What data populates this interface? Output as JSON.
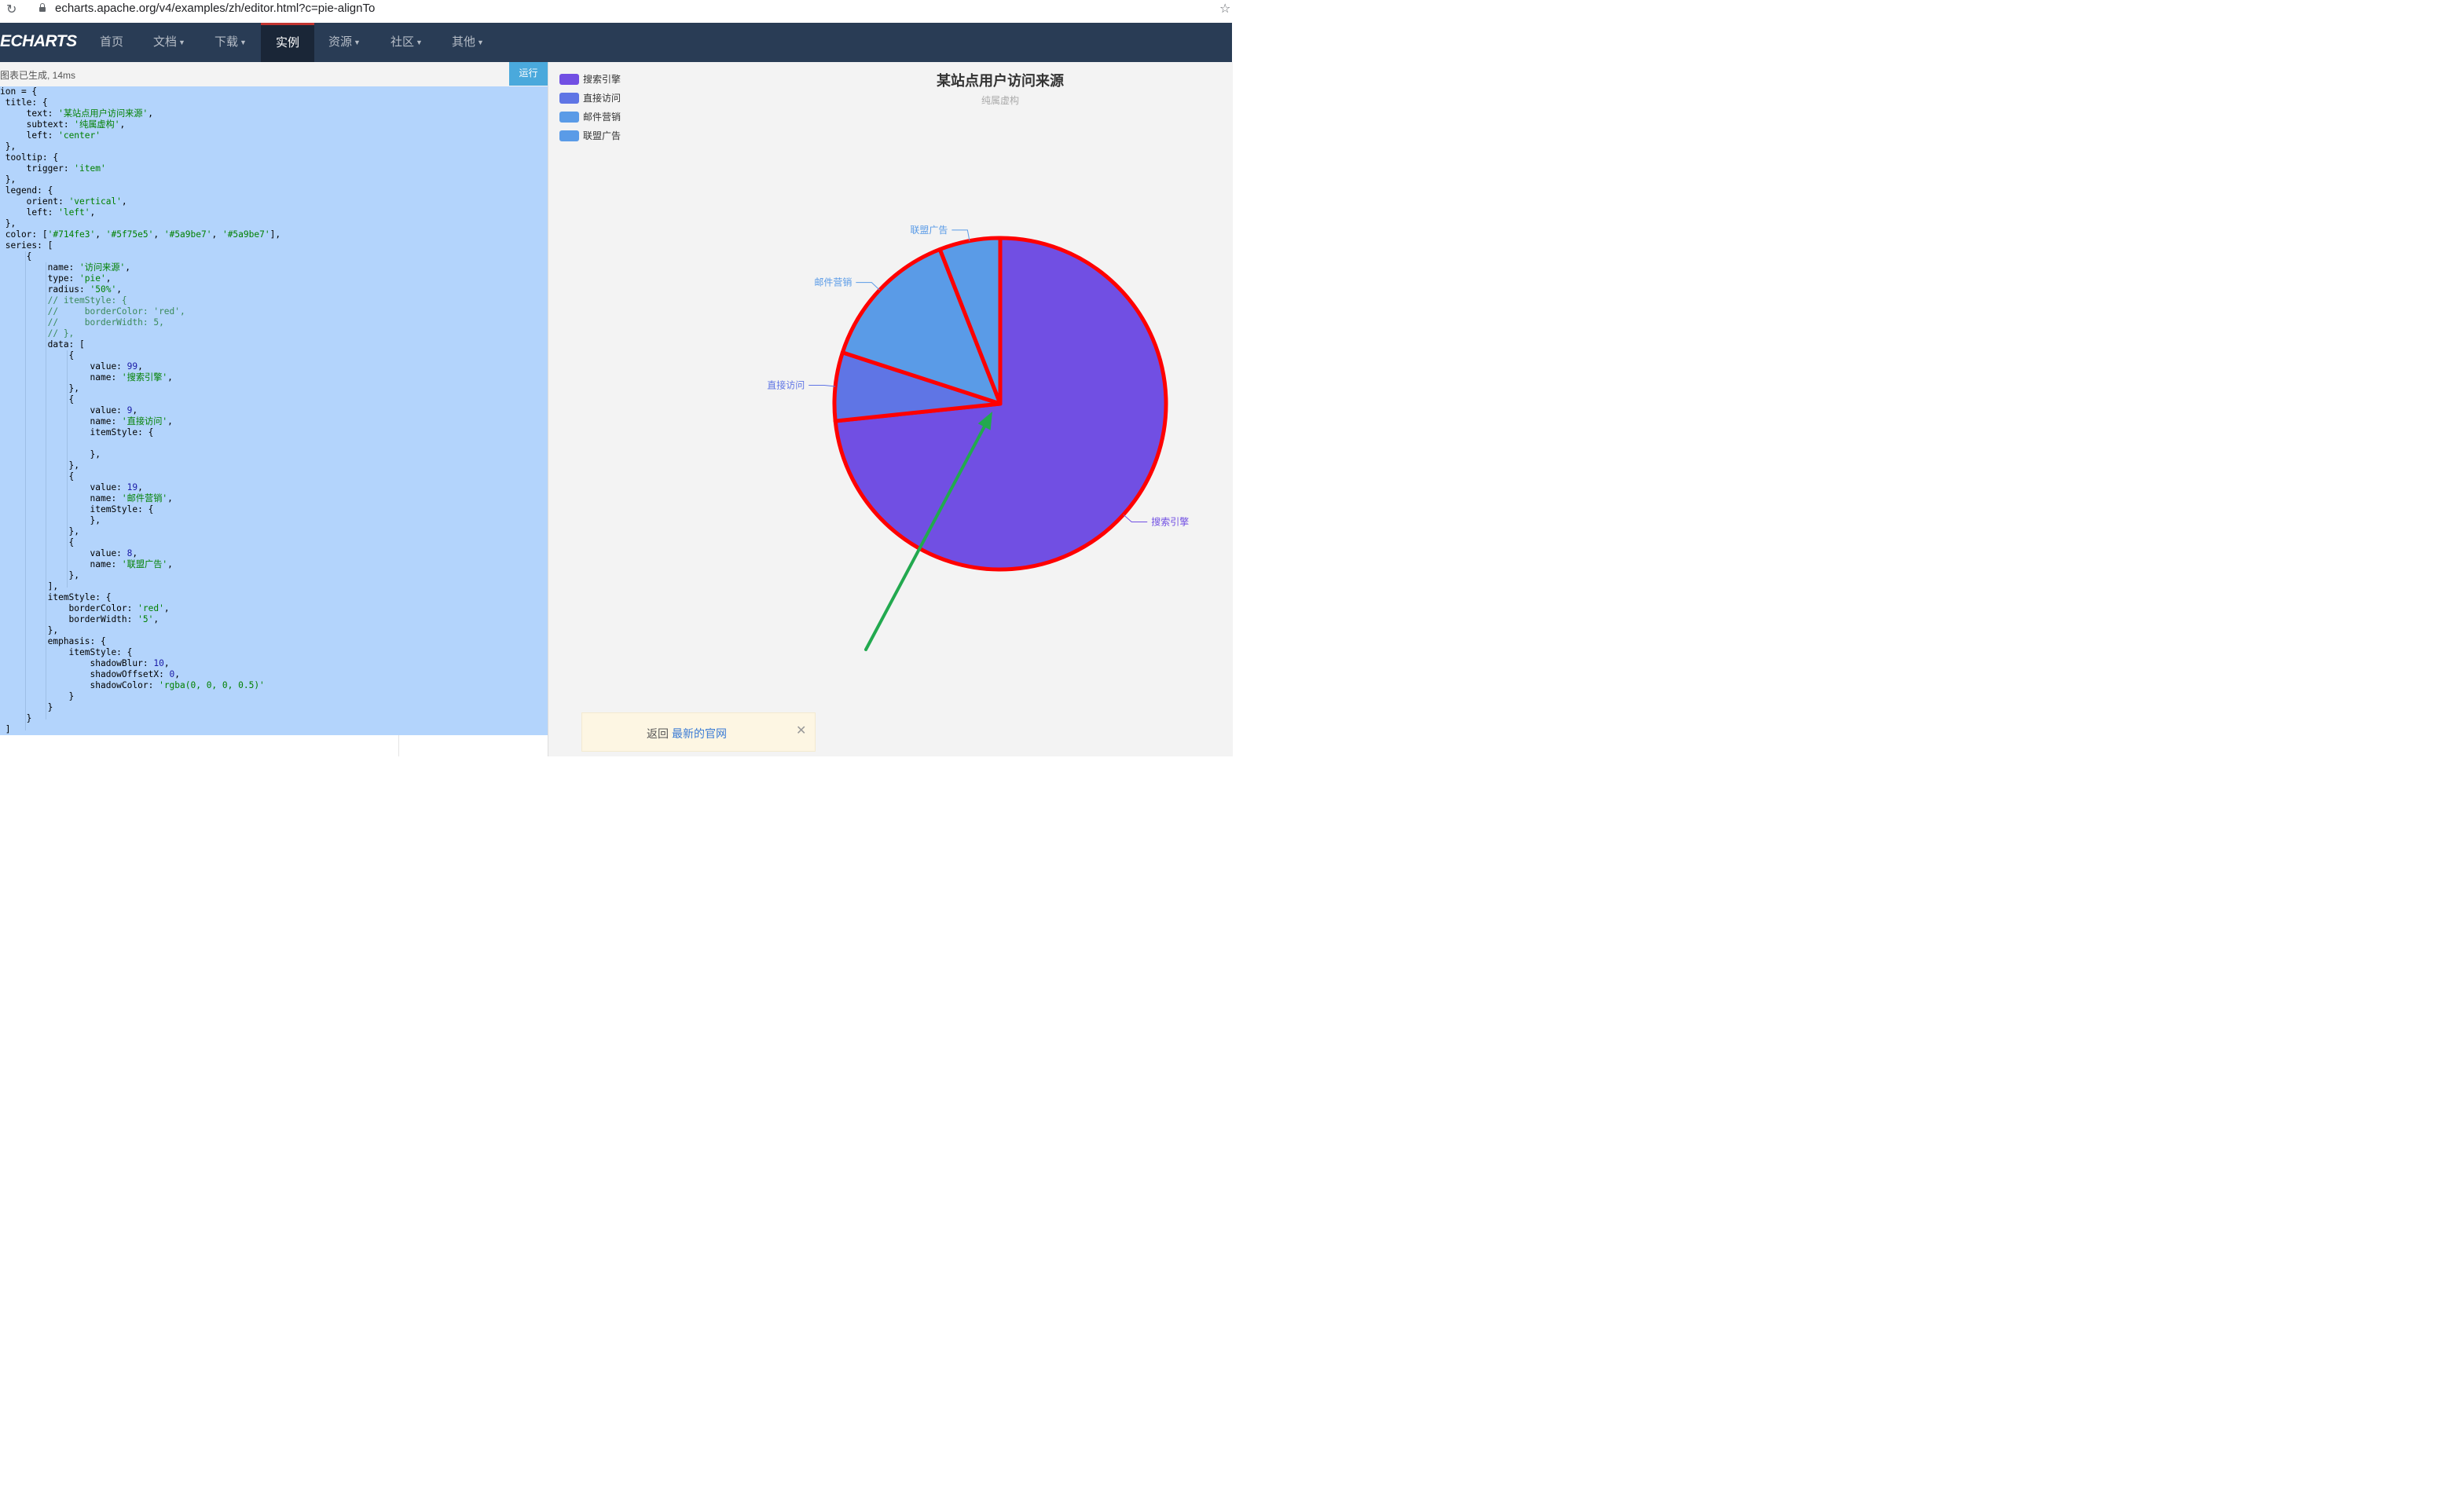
{
  "browser": {
    "reload_icon": "reload-icon",
    "url": "echarts.apache.org/v4/examples/zh/editor.html?c=pie-alignTo"
  },
  "nav": {
    "logo": "ECHARTS",
    "items": [
      "首页",
      "文档",
      "下载",
      "实例",
      "资源",
      "社区",
      "其他"
    ],
    "dropdown_items": [
      "文档",
      "下载",
      "资源",
      "社区",
      "其他"
    ],
    "active": "实例"
  },
  "editor": {
    "status": "图表已生成, 14ms",
    "run_label": "运行",
    "code_lines": [
      "ion = {",
      " title: {",
      "     text: '某站点用户访问来源',",
      "     subtext: '纯属虚构',",
      "     left: 'center'",
      " },",
      " tooltip: {",
      "     trigger: 'item'",
      " },",
      " legend: {",
      "     orient: 'vertical',",
      "     left: 'left',",
      " },",
      " color: ['#714fe3', '#5f75e5', '#5a9be7', '#5a9be7'],",
      " series: [",
      "     {",
      "         name: '访问来源',",
      "         type: 'pie',",
      "         radius: '50%',",
      "         // itemStyle: {",
      "         //     borderColor: 'red',",
      "         //     borderWidth: 5,",
      "         // },",
      "         data: [",
      "             {",
      "                 value: 99,",
      "                 name: '搜索引擎',",
      "             },",
      "             {",
      "                 value: 9,",
      "                 name: '直接访问',",
      "                 itemStyle: {",
      "",
      "                 },",
      "             },",
      "             {",
      "                 value: 19,",
      "                 name: '邮件营销',",
      "                 itemStyle: {",
      "                 },",
      "             },",
      "             {",
      "                 value: 8,",
      "                 name: '联盟广告',",
      "             },",
      "         ],",
      "         itemStyle: {",
      "             borderColor: 'red',",
      "             borderWidth: '5',",
      "         },",
      "         emphasis: {",
      "             itemStyle: {",
      "                 shadowBlur: 10,",
      "                 shadowOffsetX: 0,",
      "                 shadowColor: 'rgba(0, 0, 0, 0.5)'",
      "             }",
      "         }",
      "     }",
      " ]"
    ]
  },
  "chart_data": {
    "type": "pie",
    "title": "某站点用户访问来源",
    "subtitle": "纯属虚构",
    "legend_placement": "top-left, vertical",
    "border_color": "#ff0000",
    "series": [
      {
        "name": "访问来源",
        "values": [
          99,
          9,
          19,
          8
        ]
      }
    ],
    "categories": [
      "搜索引擎",
      "直接访问",
      "邮件营销",
      "联盟广告"
    ],
    "colors": [
      "#714fe3",
      "#5f75e5",
      "#5a9be7",
      "#5a9be7"
    ],
    "annotation": {
      "type": "arrow",
      "color": "#22a94f",
      "points_to": "pie center"
    }
  },
  "notice": {
    "text": "返回",
    "link": "最新的官网",
    "close_icon": "close-icon"
  },
  "colors": {
    "navbar": "#293c55",
    "nav_active": "#1a2637",
    "editor_selection": "#b3d4fc",
    "run_button": "#4aa9dc",
    "chart_bg": "#f3f3f3"
  }
}
